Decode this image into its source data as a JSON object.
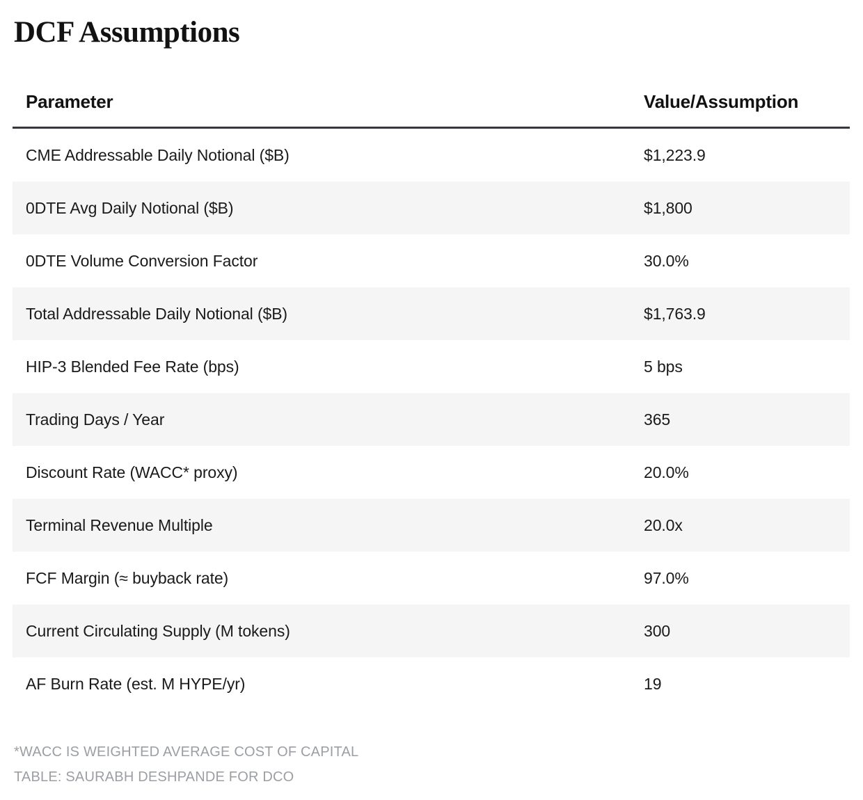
{
  "title": "DCF Assumptions",
  "colors": {
    "stripe": "#f5f5f6",
    "header_rule": "#36373a",
    "text": "#1a1a1a",
    "footnote": "#9b9ea3"
  },
  "table": {
    "columns": [
      "Parameter",
      "Value/Assumption"
    ],
    "rows": [
      {
        "param": "CME Addressable Daily Notional ($B)",
        "value": "$1,223.9"
      },
      {
        "param": "0DTE Avg Daily Notional ($B)",
        "value": "$1,800"
      },
      {
        "param": "0DTE Volume Conversion Factor",
        "value": "30.0%"
      },
      {
        "param": "Total Addressable Daily Notional ($B)",
        "value": "$1,763.9"
      },
      {
        "param": "HIP-3 Blended Fee Rate (bps)",
        "value": "5 bps"
      },
      {
        "param": "Trading Days / Year",
        "value": "365"
      },
      {
        "param": "Discount Rate (WACC* proxy)",
        "value": "20.0%"
      },
      {
        "param": "Terminal Revenue Multiple",
        "value": "20.0x"
      },
      {
        "param": "FCF Margin (≈ buyback rate)",
        "value": "97.0%"
      },
      {
        "param": "Current Circulating Supply (M tokens)",
        "value": "300"
      },
      {
        "param": "AF Burn Rate (est. M HYPE/yr)",
        "value": "19"
      }
    ]
  },
  "footnotes": [
    "*WACC IS WEIGHTED AVERAGE COST OF CAPITAL",
    "TABLE: SAURABH DESHPANDE FOR DCO"
  ],
  "chart_data": {
    "type": "table",
    "title": "DCF Assumptions",
    "columns": [
      "Parameter",
      "Value/Assumption"
    ],
    "rows": [
      [
        "CME Addressable Daily Notional ($B)",
        "$1,223.9"
      ],
      [
        "0DTE Avg Daily Notional ($B)",
        "$1,800"
      ],
      [
        "0DTE Volume Conversion Factor",
        "30.0%"
      ],
      [
        "Total Addressable Daily Notional ($B)",
        "$1,763.9"
      ],
      [
        "HIP-3 Blended Fee Rate (bps)",
        "5 bps"
      ],
      [
        "Trading Days / Year",
        "365"
      ],
      [
        "Discount Rate (WACC* proxy)",
        "20.0%"
      ],
      [
        "Terminal Revenue Multiple",
        "20.0x"
      ],
      [
        "FCF Margin (≈ buyback rate)",
        "97.0%"
      ],
      [
        "Current Circulating Supply (M tokens)",
        "300"
      ],
      [
        "AF Burn Rate (est. M HYPE/yr)",
        "19"
      ]
    ],
    "layout_hints": {
      "striped_rows": "even rows shaded",
      "value_column_align": "left"
    },
    "notes": [
      "*WACC IS WEIGHTED AVERAGE COST OF CAPITAL",
      "TABLE: SAURABH DESHPANDE FOR DCO"
    ]
  }
}
